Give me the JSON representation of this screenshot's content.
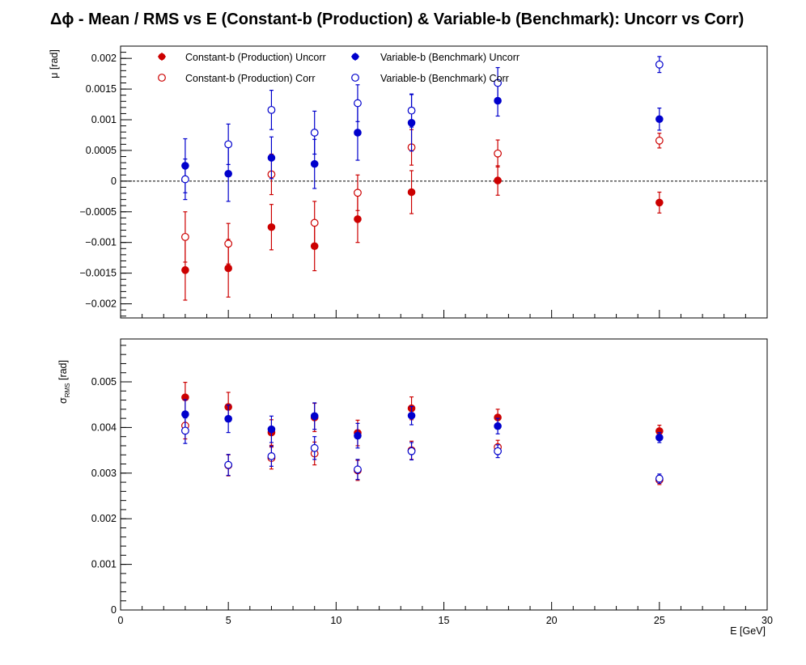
{
  "title": "Δϕ  -  Mean / RMS vs E  (Constant-b (Production) & Variable-b (Benchmark): Uncorr vs Corr)",
  "colors": {
    "red": "#cc0000",
    "blue": "#0000cc",
    "axis": "#000000"
  },
  "chart_data": [
    {
      "type": "scatter",
      "panel": "top",
      "ylabel": "μ  [rad]",
      "ylim": [
        -0.00223,
        0.0022
      ],
      "yticks": [
        -0.002,
        -0.0015,
        -0.001,
        -0.0005,
        0,
        0.0005,
        0.001,
        0.0015,
        0.002
      ],
      "ytick_labels": [
        "−0.002",
        "−0.0015",
        "−0.001",
        "−0.0005",
        "0",
        "0.0005",
        "0.001",
        "0.0015",
        "0.002"
      ],
      "xlim": [
        0,
        30
      ],
      "reference_line": 0,
      "legend": {
        "placement": "top",
        "columns": 2
      },
      "series": [
        {
          "name": "Constant-b (Production) Uncorr",
          "color": "red",
          "marker": "filled",
          "x": [
            3,
            5,
            7,
            9,
            11,
            13.5,
            17.5,
            25
          ],
          "y": [
            -0.00145,
            -0.00142,
            -0.00075,
            -0.00106,
            -0.00062,
            -0.00018,
            1e-05,
            -0.00035
          ],
          "err": [
            0.00049,
            0.00047,
            0.00037,
            0.0004,
            0.00038,
            0.00035,
            0.00024,
            0.00017
          ]
        },
        {
          "name": "Constant-b (Production) Corr",
          "color": "red",
          "marker": "open",
          "x": [
            3,
            5,
            7,
            9,
            11,
            13.5,
            17.5,
            25
          ],
          "y": [
            -0.00091,
            -0.00102,
            0.00011,
            -0.00068,
            -0.00019,
            0.00055,
            0.00045,
            0.00066
          ],
          "err": [
            0.00041,
            0.00033,
            0.00033,
            0.00035,
            0.00029,
            0.00029,
            0.00022,
            0.00012
          ]
        },
        {
          "name": "Variable-b (Benchmark) Uncorr",
          "color": "blue",
          "marker": "filled",
          "x": [
            3,
            5,
            7,
            9,
            11,
            13.5,
            17.5,
            25
          ],
          "y": [
            0.00025,
            0.00012,
            0.00038,
            0.00028,
            0.00079,
            0.00095,
            0.00131,
            0.00101
          ],
          "err": [
            0.00044,
            0.00045,
            0.00034,
            0.0004,
            0.00045,
            0.00046,
            0.00025,
            0.00018
          ]
        },
        {
          "name": "Variable-b (Benchmark) Corr",
          "color": "blue",
          "marker": "open",
          "x": [
            3,
            5,
            7,
            9,
            11,
            13.5,
            17.5,
            25
          ],
          "y": [
            3e-05,
            0.0006,
            0.00116,
            0.00079,
            0.00127,
            0.00115,
            0.0016,
            0.0019
          ],
          "err": [
            0.00033,
            0.00033,
            0.00032,
            0.00035,
            0.0003,
            0.00027,
            0.00025,
            0.00013
          ]
        }
      ]
    },
    {
      "type": "scatter",
      "panel": "bottom",
      "ylabel": "σ",
      "ylabel_sub": "RMS",
      "ylabel_unit": "[rad]",
      "xlabel": "E  [GeV]",
      "ylim": [
        0,
        0.00594
      ],
      "yticks": [
        0,
        0.001,
        0.002,
        0.003,
        0.004,
        0.005
      ],
      "ytick_labels": [
        "0",
        "0.001",
        "0.002",
        "0.003",
        "0.004",
        "0.005"
      ],
      "xlim": [
        0,
        30
      ],
      "xticks": [
        0,
        5,
        10,
        15,
        20,
        25,
        30
      ],
      "xtick_labels": [
        "0",
        "5",
        "10",
        "15",
        "20",
        "25",
        "30"
      ],
      "series": [
        {
          "name": "Constant-b (Production) Uncorr",
          "color": "red",
          "marker": "filled",
          "x": [
            3,
            5,
            7,
            9,
            11,
            13.5,
            17.5,
            25
          ],
          "y": [
            0.00466,
            0.00445,
            0.00389,
            0.00422,
            0.00388,
            0.00442,
            0.00422,
            0.00392
          ],
          "err": [
            0.00033,
            0.00032,
            0.00028,
            0.00031,
            0.00028,
            0.00025,
            0.00018,
            0.00013
          ]
        },
        {
          "name": "Constant-b (Production) Corr",
          "color": "red",
          "marker": "open",
          "x": [
            3,
            5,
            7,
            9,
            11,
            13.5,
            17.5,
            25
          ],
          "y": [
            0.00404,
            0.00317,
            0.00333,
            0.00343,
            0.00306,
            0.0035,
            0.00357,
            0.00285
          ],
          "err": [
            0.00029,
            0.00023,
            0.00024,
            0.00025,
            0.00022,
            0.0002,
            0.00015,
            0.0001
          ]
        },
        {
          "name": "Variable-b (Benchmark) Uncorr",
          "color": "blue",
          "marker": "filled",
          "x": [
            3,
            5,
            7,
            9,
            11,
            13.5,
            17.5,
            25
          ],
          "y": [
            0.00429,
            0.00419,
            0.00396,
            0.00425,
            0.00382,
            0.00426,
            0.00403,
            0.00378
          ],
          "err": [
            0.00032,
            0.0003,
            0.00029,
            0.00029,
            0.00027,
            0.0002,
            0.00017,
            0.00011
          ]
        },
        {
          "name": "Variable-b (Benchmark) Corr",
          "color": "blue",
          "marker": "open",
          "x": [
            3,
            5,
            7,
            9,
            11,
            13.5,
            17.5,
            25
          ],
          "y": [
            0.00393,
            0.00318,
            0.00337,
            0.00355,
            0.00308,
            0.00348,
            0.00348,
            0.00288
          ],
          "err": [
            0.00028,
            0.00023,
            0.00022,
            0.00025,
            0.00022,
            0.00019,
            0.00014,
            0.0001
          ]
        }
      ]
    }
  ]
}
